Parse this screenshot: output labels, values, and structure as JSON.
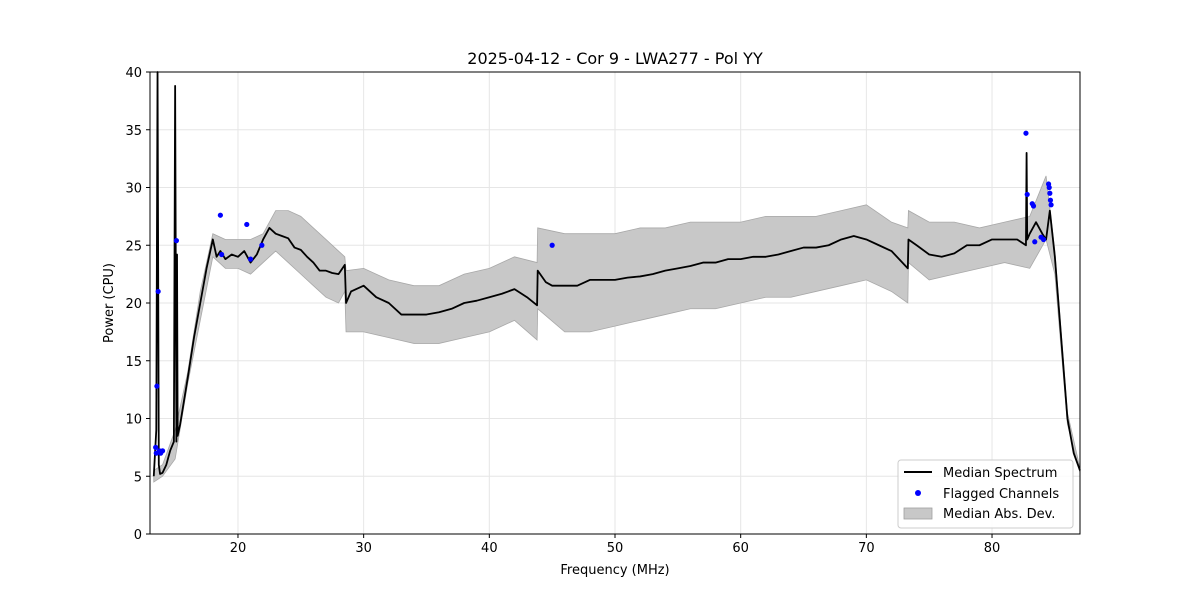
{
  "chart_data": {
    "type": "line",
    "title": "2025-04-12 - Cor 9 - LWA277 - Pol YY",
    "xlabel": "Frequency (MHz)",
    "ylabel": "Power (CPU)",
    "xlim": [
      13,
      87
    ],
    "ylim": [
      0,
      40
    ],
    "xticks": [
      20,
      30,
      40,
      50,
      60,
      70,
      80
    ],
    "yticks": [
      0,
      5,
      10,
      15,
      20,
      25,
      30,
      35,
      40
    ],
    "grid": true,
    "legend_position": "bottom-right",
    "legend": [
      {
        "label": "Median Spectrum",
        "kind": "line",
        "color": "#000000"
      },
      {
        "label": "Flagged Channels",
        "kind": "marker",
        "color": "#0000ff"
      },
      {
        "label": "Median Abs. Dev.",
        "kind": "band",
        "color": "#c8c8c8"
      }
    ],
    "series": [
      {
        "name": "Median Spectrum",
        "color": "#000000",
        "x": [
          13.3,
          13.5,
          13.6,
          13.7,
          13.8,
          14.0,
          14.3,
          14.6,
          14.9,
          15.0,
          15.1,
          15.15,
          15.2,
          15.4,
          15.7,
          16.0,
          16.5,
          17.0,
          17.5,
          18.0,
          18.3,
          18.6,
          19.0,
          19.5,
          20.0,
          20.5,
          21.0,
          21.5,
          22.0,
          22.5,
          23.0,
          23.5,
          24.0,
          24.5,
          25.0,
          25.5,
          26.0,
          26.5,
          27.0,
          27.5,
          28.0,
          28.5,
          28.6,
          29.0,
          30.0,
          31.0,
          32.0,
          33.0,
          34.0,
          35.0,
          36.0,
          37.0,
          38.0,
          39.0,
          40.0,
          41.0,
          42.0,
          43.0,
          43.8,
          43.85,
          44.5,
          45.0,
          46.0,
          47.0,
          48.0,
          49.0,
          50.0,
          51.0,
          52.0,
          53.0,
          54.0,
          55.0,
          56.0,
          57.0,
          58.0,
          59.0,
          60.0,
          61.0,
          62.0,
          63.0,
          64.0,
          65.0,
          66.0,
          67.0,
          68.0,
          69.0,
          70.0,
          71.0,
          72.0,
          73.3,
          73.35,
          74.0,
          75.0,
          76.0,
          77.0,
          78.0,
          79.0,
          80.0,
          81.0,
          82.0,
          82.7,
          82.75,
          82.8,
          83.0,
          83.5,
          84.0,
          84.3,
          84.6,
          85.0,
          85.5,
          86.0,
          86.5,
          87.0
        ],
        "values": [
          5.0,
          9.0,
          40.0,
          6.0,
          5.2,
          5.3,
          6.0,
          7.2,
          8.0,
          38.8,
          8.0,
          24.2,
          8.5,
          9.5,
          11.5,
          13.5,
          17.0,
          20.0,
          23.0,
          25.5,
          24.0,
          24.5,
          23.8,
          24.2,
          24.0,
          24.5,
          23.5,
          24.2,
          25.5,
          26.5,
          26.0,
          25.8,
          25.6,
          24.8,
          24.6,
          24.0,
          23.5,
          22.8,
          22.8,
          22.6,
          22.5,
          23.3,
          20.0,
          21.0,
          21.5,
          20.5,
          20.0,
          19.0,
          19.0,
          19.0,
          19.2,
          19.5,
          20.0,
          20.2,
          20.5,
          20.8,
          21.2,
          20.5,
          19.8,
          22.8,
          21.8,
          21.5,
          21.5,
          21.5,
          22.0,
          22.0,
          22.0,
          22.2,
          22.3,
          22.5,
          22.8,
          23.0,
          23.2,
          23.5,
          23.5,
          23.8,
          23.8,
          24.0,
          24.0,
          24.2,
          24.5,
          24.8,
          24.8,
          25.0,
          25.5,
          25.8,
          25.5,
          25.0,
          24.5,
          23.0,
          25.5,
          25.0,
          24.2,
          24.0,
          24.3,
          25.0,
          25.0,
          25.5,
          25.5,
          25.5,
          25.0,
          33.0,
          25.5,
          26.0,
          27.0,
          26.0,
          25.5,
          28.0,
          24.0,
          17.0,
          10.0,
          7.0,
          5.5
        ]
      }
    ],
    "mad_band": {
      "name": "Median Abs. Dev.",
      "color": "#c8c8c8",
      "x": [
        13.3,
        14.0,
        15.0,
        16.0,
        17.0,
        18.0,
        19.0,
        20.0,
        21.0,
        22.0,
        23.0,
        24.0,
        25.0,
        26.0,
        27.0,
        28.0,
        28.5,
        28.6,
        30.0,
        32.0,
        34.0,
        36.0,
        38.0,
        40.0,
        42.0,
        43.8,
        43.85,
        46.0,
        48.0,
        50.0,
        52.0,
        54.0,
        56.0,
        58.0,
        60.0,
        62.0,
        64.0,
        66.0,
        68.0,
        70.0,
        72.0,
        73.3,
        73.35,
        75.0,
        77.0,
        79.0,
        81.0,
        83.0,
        84.3,
        85.0,
        86.0,
        87.0
      ],
      "upper": [
        5.5,
        6.0,
        9.0,
        14.0,
        21.0,
        26.0,
        25.5,
        25.5,
        25.5,
        26.0,
        28.0,
        28.0,
        27.5,
        26.5,
        25.5,
        24.5,
        24.0,
        22.8,
        23.0,
        22.0,
        21.5,
        21.5,
        22.5,
        23.0,
        24.0,
        23.5,
        26.5,
        26.0,
        26.0,
        26.0,
        26.5,
        26.5,
        27.0,
        27.0,
        27.0,
        27.5,
        27.5,
        27.5,
        28.0,
        28.5,
        27.0,
        26.5,
        28.0,
        27.0,
        27.0,
        26.5,
        27.0,
        27.5,
        31.0,
        24.5,
        10.5,
        5.7
      ],
      "lower": [
        4.5,
        5.0,
        6.5,
        13.0,
        18.5,
        24.0,
        23.0,
        23.0,
        22.5,
        23.5,
        24.5,
        23.5,
        22.5,
        21.5,
        20.5,
        20.0,
        21.0,
        17.5,
        17.5,
        17.0,
        16.5,
        16.5,
        17.0,
        17.5,
        18.5,
        16.8,
        19.5,
        17.5,
        17.5,
        18.0,
        18.5,
        19.0,
        19.5,
        19.5,
        20.0,
        20.5,
        20.5,
        21.0,
        21.5,
        22.0,
        21.0,
        20.0,
        23.5,
        22.0,
        22.5,
        23.0,
        23.5,
        23.0,
        25.5,
        22.5,
        9.5,
        5.3
      ]
    },
    "flagged_channels": {
      "name": "Flagged Channels",
      "color": "#0000ff",
      "x": [
        13.45,
        13.5,
        13.55,
        13.65,
        13.75,
        13.85,
        14.0,
        15.1,
        18.6,
        18.7,
        20.7,
        21.0,
        21.9,
        45.0,
        82.7,
        82.8,
        83.2,
        83.3,
        83.4,
        83.9,
        84.1,
        84.5,
        84.55,
        84.6,
        84.65,
        84.7
      ],
      "values": [
        7.5,
        7.0,
        12.8,
        21.0,
        7.2,
        7.0,
        7.2,
        25.4,
        27.6,
        24.2,
        26.8,
        23.8,
        25.0,
        25.0,
        34.7,
        29.4,
        28.6,
        28.4,
        25.3,
        25.7,
        25.5,
        30.3,
        30.0,
        29.5,
        28.9,
        28.5
      ]
    }
  }
}
